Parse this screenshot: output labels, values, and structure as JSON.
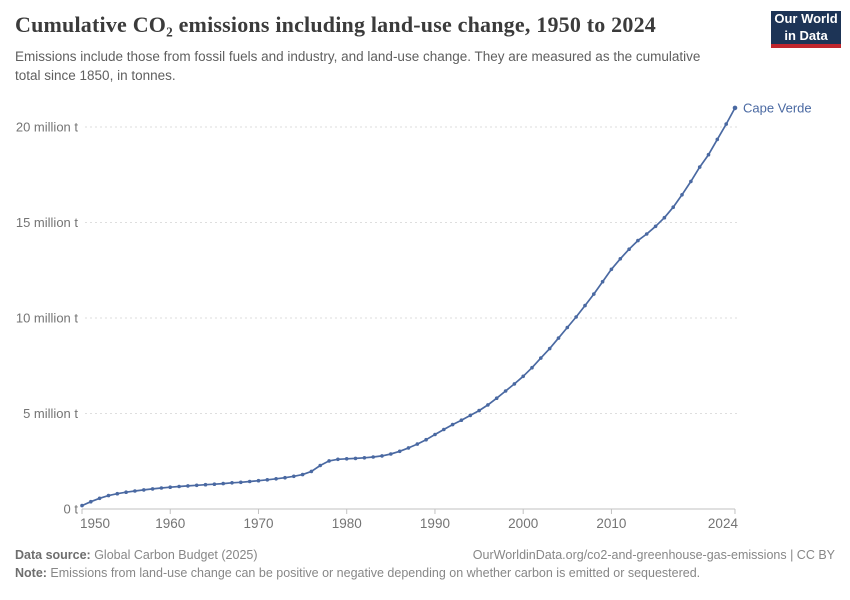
{
  "header": {
    "title": "Cumulative CO₂ emissions including land-use change, 1950 to 2024",
    "subtitle": "Emissions include those from fossil fuels and industry, and land-use change. They are measured as the cumulative total since 1850, in tonnes.",
    "logo": {
      "line1": "Our World",
      "line2": "in Data"
    }
  },
  "chart_data": {
    "type": "line",
    "title": "Cumulative CO₂ emissions including land-use change, 1950 to 2024",
    "entity_label": "Cape Verde",
    "values_unit": "million tonnes",
    "x_range": [
      1950,
      2024
    ],
    "x_step": 1,
    "ylim": [
      0,
      21.5
    ],
    "grid": "dashed horizontal gridlines at 5, 10, 15, 20 million t",
    "legend_position": "entity label at right end of line",
    "series": [
      {
        "name": "Cape Verde",
        "values": [
          0.18,
          0.38,
          0.56,
          0.7,
          0.8,
          0.88,
          0.94,
          1.0,
          1.05,
          1.1,
          1.14,
          1.18,
          1.21,
          1.24,
          1.27,
          1.3,
          1.33,
          1.37,
          1.4,
          1.44,
          1.48,
          1.53,
          1.58,
          1.64,
          1.71,
          1.8,
          1.97,
          2.28,
          2.52,
          2.6,
          2.63,
          2.65,
          2.68,
          2.72,
          2.78,
          2.88,
          3.02,
          3.2,
          3.4,
          3.63,
          3.9,
          4.16,
          4.42,
          4.65,
          4.9,
          5.15,
          5.45,
          5.8,
          6.18,
          6.55,
          6.95,
          7.4,
          7.9,
          8.4,
          8.95,
          9.5,
          10.05,
          10.65,
          11.25,
          11.9,
          12.55,
          13.1,
          13.6,
          14.05,
          14.4,
          14.8,
          15.25,
          15.8,
          16.45,
          17.15,
          17.9,
          18.55,
          19.35,
          20.15,
          21.0
        ]
      }
    ],
    "x_ticks": [
      {
        "year": 1950,
        "label": "1950"
      },
      {
        "year": 1960,
        "label": "1960"
      },
      {
        "year": 1970,
        "label": "1970"
      },
      {
        "year": 1980,
        "label": "1980"
      },
      {
        "year": 1990,
        "label": "1990"
      },
      {
        "year": 2000,
        "label": "2000"
      },
      {
        "year": 2010,
        "label": "2010"
      },
      {
        "year": 2024,
        "label": "2024"
      }
    ],
    "y_ticks": [
      {
        "value": 0,
        "label": "0 t"
      },
      {
        "value": 5,
        "label": "5 million t"
      },
      {
        "value": 10,
        "label": "10 million t"
      },
      {
        "value": 15,
        "label": "15 million t"
      },
      {
        "value": 20,
        "label": "20 million t"
      }
    ]
  },
  "colors": {
    "line": "#4a69a2",
    "entity_label": "#4a69a2",
    "grid": "#dedede",
    "axis": "#c2c2c2",
    "tick_label": "#747474",
    "logo_bg": "#1d3456",
    "logo_accent": "#c0262d"
  },
  "footer": {
    "source_label": "Data source:",
    "source_text": " Global Carbon Budget (2025)",
    "url_text": "OurWorldinData.org/co2-and-greenhouse-gas-emissions | CC BY",
    "note_label": "Note:",
    "note_text": " Emissions from land-use change can be positive or negative depending on whether carbon is emitted or sequestered."
  }
}
